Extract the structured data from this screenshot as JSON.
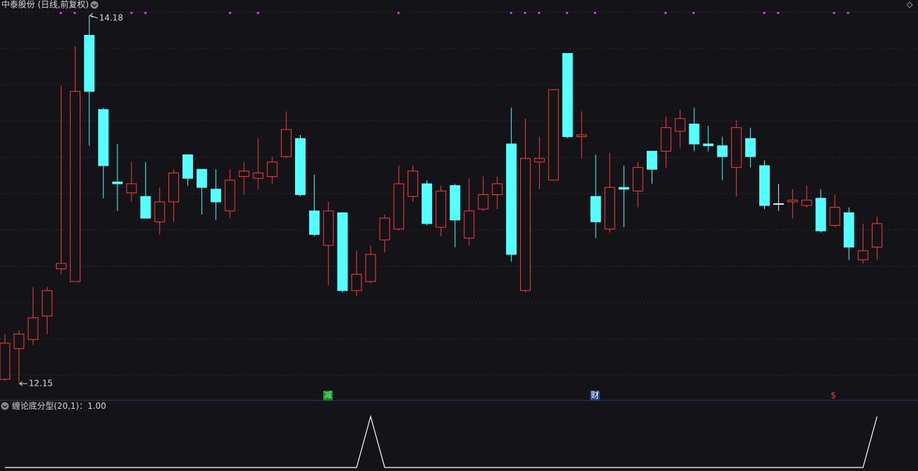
{
  "chart_data": {
    "type": "candlestick",
    "title": "中泰股份 (日线,前复权)",
    "up_color": "#ff3c3c",
    "down_color": "#54ffff",
    "flat_color": "#e8e8e8",
    "open": [
      12.17,
      12.34,
      12.39,
      12.52,
      12.78,
      12.71,
      14.07,
      13.66,
      13.26,
      13.2,
      13.18,
      13.04,
      13.15,
      13.41,
      13.33,
      13.22,
      13.1,
      13.29,
      13.28,
      13.29,
      13.4,
      13.5,
      13.1,
      12.91,
      13.09,
      12.66,
      12.71,
      12.94,
      13.0,
      13.18,
      13.25,
      13.01,
      13.24,
      12.95,
      13.11,
      13.19,
      13.47,
      12.66,
      13.37,
      13.27,
      13.97,
      13.51,
      13.18,
      13.0,
      13.23,
      13.21,
      13.43,
      13.43,
      13.54,
      13.58,
      13.47,
      13.46,
      13.34,
      13.5,
      13.35,
      13.14,
      13.15,
      13.13,
      13.17,
      13.02,
      13.09,
      12.83,
      12.9
    ],
    "high": [
      12.42,
      12.44,
      12.68,
      12.68,
      13.79,
      14.01,
      14.18,
      13.67,
      13.47,
      13.37,
      13.37,
      13.23,
      13.33,
      13.41,
      13.33,
      13.33,
      13.33,
      13.37,
      13.5,
      13.4,
      13.65,
      13.52,
      13.3,
      13.15,
      13.09,
      12.88,
      12.91,
      13.08,
      13.35,
      13.35,
      13.27,
      13.24,
      13.25,
      13.28,
      13.29,
      13.29,
      13.67,
      13.61,
      13.51,
      13.77,
      13.97,
      13.65,
      13.41,
      13.42,
      13.35,
      13.37,
      13.43,
      13.62,
      13.66,
      13.67,
      13.57,
      13.51,
      13.6,
      13.56,
      13.38,
      13.25,
      13.22,
      13.24,
      13.22,
      13.19,
      13.12,
      13.03,
      13.07
    ],
    "low": [
      12.16,
      12.15,
      12.36,
      12.42,
      12.75,
      12.71,
      13.46,
      13.17,
      13.1,
      13.15,
      13.06,
      12.97,
      13.04,
      13.24,
      13.08,
      13.05,
      13.06,
      13.19,
      13.22,
      13.25,
      13.39,
      13.18,
      12.96,
      12.69,
      12.65,
      12.63,
      12.7,
      12.87,
      12.99,
      13.15,
      13.02,
      12.96,
      12.9,
      12.91,
      13.1,
      13.11,
      12.82,
      12.65,
      13.22,
      13.27,
      13.5,
      13.39,
      12.95,
      12.98,
      13.01,
      13.12,
      13.25,
      13.34,
      13.45,
      13.43,
      13.43,
      13.27,
      13.18,
      13.34,
      13.11,
      13.1,
      13.06,
      13.12,
      12.98,
      13.01,
      12.83,
      12.81,
      12.83
    ],
    "close": [
      12.37,
      12.42,
      12.51,
      12.66,
      12.81,
      13.76,
      13.76,
      13.35,
      13.25,
      13.25,
      13.06,
      13.15,
      13.31,
      13.28,
      13.23,
      13.15,
      13.27,
      13.32,
      13.31,
      13.37,
      13.55,
      13.19,
      12.97,
      13.1,
      12.66,
      12.75,
      12.86,
      13.06,
      13.25,
      13.32,
      13.03,
      13.21,
      13.05,
      13.1,
      13.19,
      13.25,
      12.86,
      13.39,
      13.39,
      13.77,
      13.51,
      13.52,
      13.04,
      13.23,
      13.22,
      13.34,
      13.33,
      13.56,
      13.61,
      13.47,
      13.46,
      13.4,
      13.56,
      13.4,
      13.13,
      13.14,
      13.16,
      13.16,
      12.99,
      13.12,
      12.9,
      12.88,
      13.03
    ],
    "events": [
      "减",
      "财",
      "$"
    ],
    "indicator": {
      "type": "line",
      "label": "缠论底分型(20,1)：",
      "color": "#ffffff",
      "values": [
        0,
        0,
        0,
        0,
        0,
        0,
        0,
        0,
        0,
        0,
        0,
        0,
        0,
        0,
        0,
        0,
        0,
        0,
        0,
        0,
        0,
        0,
        0,
        0,
        0,
        0,
        1,
        0,
        0,
        0,
        0,
        0,
        0,
        0,
        0,
        0,
        0,
        0,
        0,
        0,
        0,
        0,
        0,
        0,
        0,
        0,
        0,
        0,
        0,
        0,
        0,
        0,
        0,
        0,
        0,
        0,
        0,
        0,
        0,
        0,
        0,
        0,
        1
      ],
      "value_labels": [
        null,
        null,
        null,
        null,
        null,
        null,
        null,
        null,
        null,
        null,
        null,
        null,
        null,
        null,
        null,
        null,
        null,
        null,
        null,
        null,
        null,
        null,
        null,
        null,
        null,
        null,
        null,
        null,
        null,
        null,
        null,
        null,
        null,
        null,
        null,
        null,
        null,
        null,
        null,
        null,
        null,
        null,
        null,
        null,
        null,
        null,
        null,
        null,
        null,
        null,
        null,
        null,
        null,
        null,
        null,
        null,
        null,
        null,
        null,
        null,
        null,
        null,
        "1.00"
      ]
    }
  }
}
